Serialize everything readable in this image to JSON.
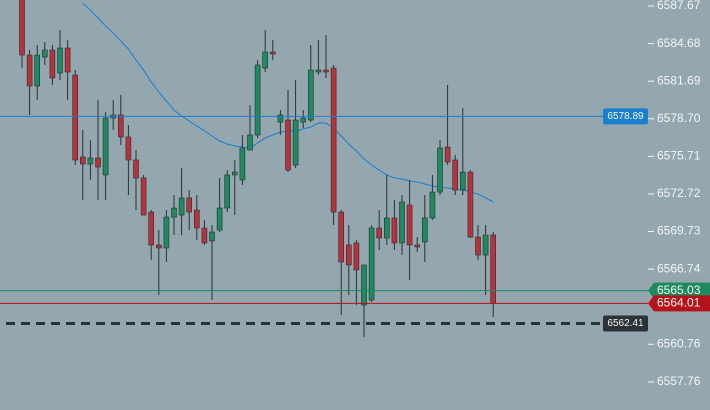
{
  "chart_data": {
    "type": "candlestick",
    "up_color": "#1f8a5f",
    "down_color": "#b8323c",
    "outline_color": "#2a3036",
    "ylim": [
      6555.53,
      6588.15
    ],
    "yticks": [
      6587.67,
      6584.68,
      6581.69,
      {
        "value": 6578.7,
        "label": "6578.70"
      },
      6575.71,
      6572.72,
      6569.73,
      6566.74,
      6560.76,
      6557.76
    ],
    "open": [
      6588.6,
      6583.77,
      6581.31,
      6583.61,
      6584.17,
      6582.34,
      6584.33,
      6582.18,
      6575.66,
      6575.1,
      6575.58,
      6574.23,
      6578.76,
      6579.0,
      6577.25,
      6575.42,
      6573.99,
      6571.28,
      6568.66,
      6568.42,
      6570.88,
      6571.04,
      6572.4,
      6571.44,
      6570.01,
      6568.98,
      6569.85,
      6571.6,
      6574.23,
      6573.83,
      6576.21,
      6577.41,
      6582.74,
      6584.01,
      6578.44,
      6578.6,
      6575.02,
      6578.44,
      6578.6,
      6582.42,
      6582.58,
      6582.74,
      6571.28,
      6568.66,
      6568.82,
      6563.88,
      6564.28,
      6570.01,
      6569.21,
      6570.81,
      6568.82,
      6571.84,
      6568.66,
      6568.9,
      6570.81,
      6572.87,
      6576.45,
      6575.42,
      6573.03,
      6574.46,
      6569.29,
      6567.86,
      6569.45
    ],
    "high": [
      6589.0,
      6584.17,
      6584.57,
      6584.81,
      6584.57,
      6585.76,
      6584.97,
      6582.58,
      6577.81,
      6577.01,
      6580.19,
      6579.24,
      6580.19,
      6580.59,
      6578.2,
      6576.21,
      6574.23,
      6571.44,
      6569.85,
      6571.44,
      6572.63,
      6574.78,
      6573.03,
      6572.63,
      6570.65,
      6570.25,
      6573.99,
      6574.62,
      6575.42,
      6577.41,
      6579.79,
      6583.37,
      6585.76,
      6584.97,
      6579.4,
      6580.99,
      6581.78,
      6579.4,
      6584.57,
      6584.97,
      6585.36,
      6582.98,
      6571.44,
      6570.25,
      6569.06,
      6567.07,
      6570.25,
      6571.44,
      6574.23,
      6572.24,
      6572.63,
      6573.83,
      6569.29,
      6572.63,
      6574.23,
      6577.01,
      6581.39,
      6575.82,
      6579.56,
      6574.62,
      6570.25,
      6570.25,
      6569.69
    ],
    "low": [
      6582.74,
      6579.0,
      6580.19,
      6582.98,
      6581.39,
      6581.78,
      6580.19,
      6575.02,
      6572.24,
      6573.83,
      6572.24,
      6572.24,
      6577.81,
      6576.61,
      6572.63,
      6571.44,
      6571.04,
      6567.46,
      6564.68,
      6567.31,
      6569.45,
      6569.45,
      6569.85,
      6569.06,
      6568.66,
      6564.28,
      6569.69,
      6571.28,
      6571.04,
      6573.43,
      6576.21,
      6577.17,
      6582.42,
      6583.37,
      6577.41,
      6574.46,
      6574.78,
      6577.96,
      6578.44,
      6582.18,
      6581.94,
      6570.25,
      6563.09,
      6564.68,
      6563.88,
      6561.34,
      6564.12,
      6568.26,
      6568.66,
      6568.26,
      6567.86,
      6565.87,
      6568.1,
      6567.31,
      6570.65,
      6572.63,
      6575.02,
      6572.63,
      6572.63,
      6569.21,
      6567.46,
      6564.68,
      6562.93
    ],
    "close": [
      6583.77,
      6581.31,
      6583.77,
      6584.17,
      6581.94,
      6584.33,
      6582.42,
      6575.42,
      6575.1,
      6575.58,
      6574.86,
      6578.76,
      6579.0,
      6577.25,
      6575.42,
      6573.99,
      6571.04,
      6568.66,
      6568.42,
      6570.88,
      6571.6,
      6572.4,
      6571.28,
      6570.01,
      6568.82,
      6569.69,
      6571.6,
      6574.23,
      6574.46,
      6576.37,
      6577.41,
      6582.98,
      6584.01,
      6583.85,
      6579.0,
      6574.62,
      6578.6,
      6578.76,
      6582.58,
      6582.58,
      6582.42,
      6571.28,
      6567.31,
      6567.07,
      6566.67,
      6567.07,
      6570.01,
      6569.21,
      6570.81,
      6568.82,
      6572.08,
      6568.66,
      6568.5,
      6570.81,
      6572.87,
      6576.37,
      6575.26,
      6573.03,
      6574.46,
      6569.29,
      6567.86,
      6569.45,
      6564.01
    ],
    "lines": [
      {
        "color": "#1a7fd0",
        "values": [
          null,
          null,
          null,
          null,
          null,
          null,
          null,
          null,
          6587.91,
          6587.35,
          6586.72,
          6586.08,
          6585.52,
          6584.89,
          6584.25,
          6583.37,
          6582.58,
          6581.62,
          6580.83,
          6580.11,
          6579.4,
          6578.92,
          6578.52,
          6578.12,
          6577.73,
          6577.33,
          6576.93,
          6576.69,
          6576.53,
          6576.45,
          6576.37,
          6576.77,
          6577.17,
          6577.41,
          6577.65,
          6577.73,
          6577.73,
          6577.89,
          6578.04,
          6578.36,
          6578.36,
          6577.96,
          6577.33,
          6576.69,
          6576.14,
          6575.5,
          6575.02,
          6574.62,
          6574.23,
          6573.99,
          6573.91,
          6573.75,
          6573.67,
          6573.51,
          6573.35,
          6573.27,
          6573.19,
          6573.11,
          6573.03,
          6572.87,
          6572.71,
          6572.4,
          6572.08
        ]
      }
    ],
    "price_lines": [
      {
        "value": 6578.89,
        "color": "#1a7fd0",
        "style": "solid",
        "marker": "inline"
      },
      {
        "value": 6565.03,
        "color": "#1f8a5f",
        "style": "solid",
        "marker": "axis"
      },
      {
        "value": 6564.01,
        "color": "#b5121b",
        "style": "solid",
        "marker": "axis"
      },
      {
        "value": 6562.41,
        "color": "#2b3238",
        "style": "dashed",
        "marker": "inline"
      }
    ]
  }
}
